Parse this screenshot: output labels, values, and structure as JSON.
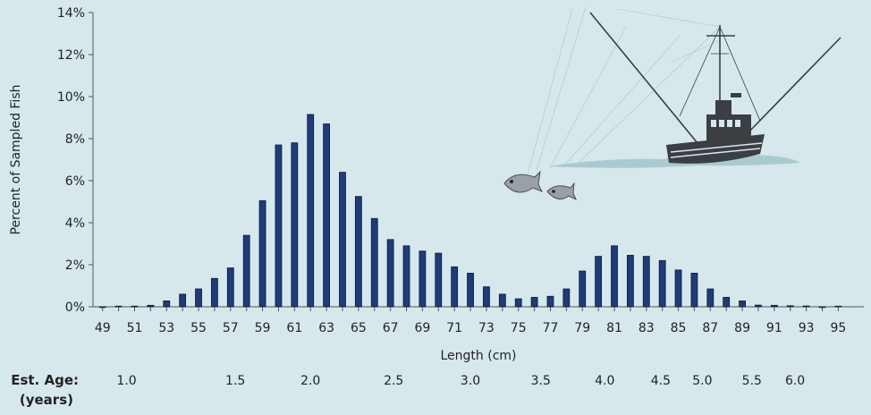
{
  "chart_data": {
    "type": "bar",
    "xlabel": "Length (cm)",
    "ylabel": "Percent of Sampled Fish",
    "ylim": [
      0,
      14
    ],
    "y_ticks": [
      "0%",
      "2%",
      "4%",
      "6%",
      "8%",
      "10%",
      "12%",
      "14%"
    ],
    "x_ticks": [
      "49",
      "51",
      "53",
      "55",
      "57",
      "59",
      "61",
      "63",
      "65",
      "67",
      "69",
      "71",
      "73",
      "75",
      "77",
      "79",
      "81",
      "83",
      "85",
      "87",
      "89",
      "91",
      "93",
      "95"
    ],
    "x": [
      49,
      50,
      51,
      52,
      53,
      54,
      55,
      56,
      57,
      58,
      59,
      60,
      61,
      62,
      63,
      64,
      65,
      66,
      67,
      68,
      69,
      70,
      71,
      72,
      73,
      74,
      75,
      76,
      77,
      78,
      79,
      80,
      81,
      82,
      83,
      84,
      85,
      86,
      87,
      88,
      89,
      90,
      91,
      92,
      93,
      94,
      95
    ],
    "values": [
      0.0,
      0.03,
      0.03,
      0.07,
      0.28,
      0.6,
      0.85,
      1.35,
      1.85,
      3.4,
      5.05,
      7.7,
      7.8,
      9.15,
      8.7,
      6.4,
      5.25,
      4.2,
      3.2,
      2.9,
      2.65,
      2.55,
      1.9,
      1.6,
      0.95,
      0.6,
      0.38,
      0.45,
      0.5,
      0.85,
      1.7,
      2.4,
      2.9,
      2.45,
      2.4,
      2.2,
      1.75,
      1.6,
      0.85,
      0.45,
      0.28,
      0.08,
      0.07,
      0.05,
      0.04,
      0.0,
      0.03
    ],
    "bar_color": "#1f3b7a",
    "grid": false,
    "age_axis": {
      "title_line1": "Est. Age:",
      "title_line2": "(years)",
      "labels": [
        {
          "text": "1.0",
          "length": 50.5
        },
        {
          "text": "1.5",
          "length": 57.3
        },
        {
          "text": "2.0",
          "length": 62.0
        },
        {
          "text": "2.5",
          "length": 67.2
        },
        {
          "text": "3.0",
          "length": 72.0
        },
        {
          "text": "3.5",
          "length": 76.4
        },
        {
          "text": "4.0",
          "length": 80.4
        },
        {
          "text": "4.5",
          "length": 83.9
        },
        {
          "text": "5.0",
          "length": 86.5
        },
        {
          "text": "5.5",
          "length": 89.6
        },
        {
          "text": "6.0",
          "length": 92.3
        }
      ]
    }
  },
  "decorations": {
    "boat_icon": "fishing-boat-icon",
    "fish_icon": "tuna-fish-icon"
  }
}
